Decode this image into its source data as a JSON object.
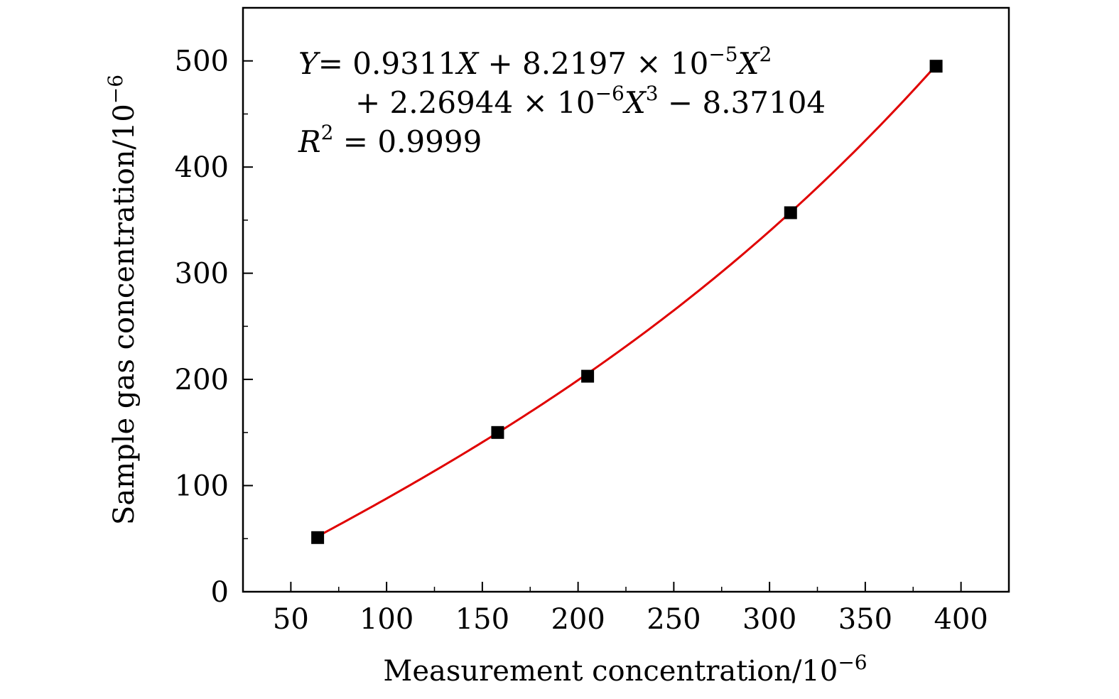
{
  "chart_data": {
    "type": "scatter",
    "title": "",
    "xlabel": "Measurement concentration/10",
    "xlabel_exp": "−6",
    "ylabel": "Sample gas concentration/10",
    "ylabel_exp": "−6",
    "xlim": [
      25,
      425
    ],
    "ylim": [
      0,
      550
    ],
    "xticks": [
      50,
      100,
      150,
      200,
      250,
      300,
      350,
      400
    ],
    "xtick_labels": [
      "50",
      "100",
      "150",
      "200",
      "250",
      "300",
      "350",
      "400"
    ],
    "yticks": [
      0,
      100,
      200,
      300,
      400,
      500
    ],
    "ytick_labels": [
      "0",
      "100",
      "200",
      "300",
      "400",
      "500"
    ],
    "grid": false,
    "legend": "none",
    "series": [
      {
        "marker": "square",
        "color": "#000000",
        "x": [
          64,
          158,
          205,
          311,
          387
        ],
        "y": [
          51,
          150,
          203,
          357,
          495
        ]
      }
    ],
    "fit": {
      "type": "polynomial-3",
      "color": "#e00000",
      "coefficients": {
        "c0": -8.37104,
        "c1": 0.9311,
        "c2": 8.2197e-05,
        "c3": 2.26944e-06
      },
      "x_range": [
        64,
        387
      ]
    },
    "annotation": {
      "line1": {
        "y": "Y",
        "eq1": "= 0.9311",
        "x1": "X",
        "mid1": " + 8.2197 × 10",
        "exp1": "−5",
        "x2": "X",
        "pow2": "2"
      },
      "line2": {
        "mid2": "+ 2.26944 × 10",
        "exp2": "−6",
        "x3": "X",
        "pow3": "3",
        "tail": " − 8.37104"
      },
      "line3": {
        "r": "R",
        "pow": "2",
        "val": " = 0.9999"
      }
    }
  }
}
